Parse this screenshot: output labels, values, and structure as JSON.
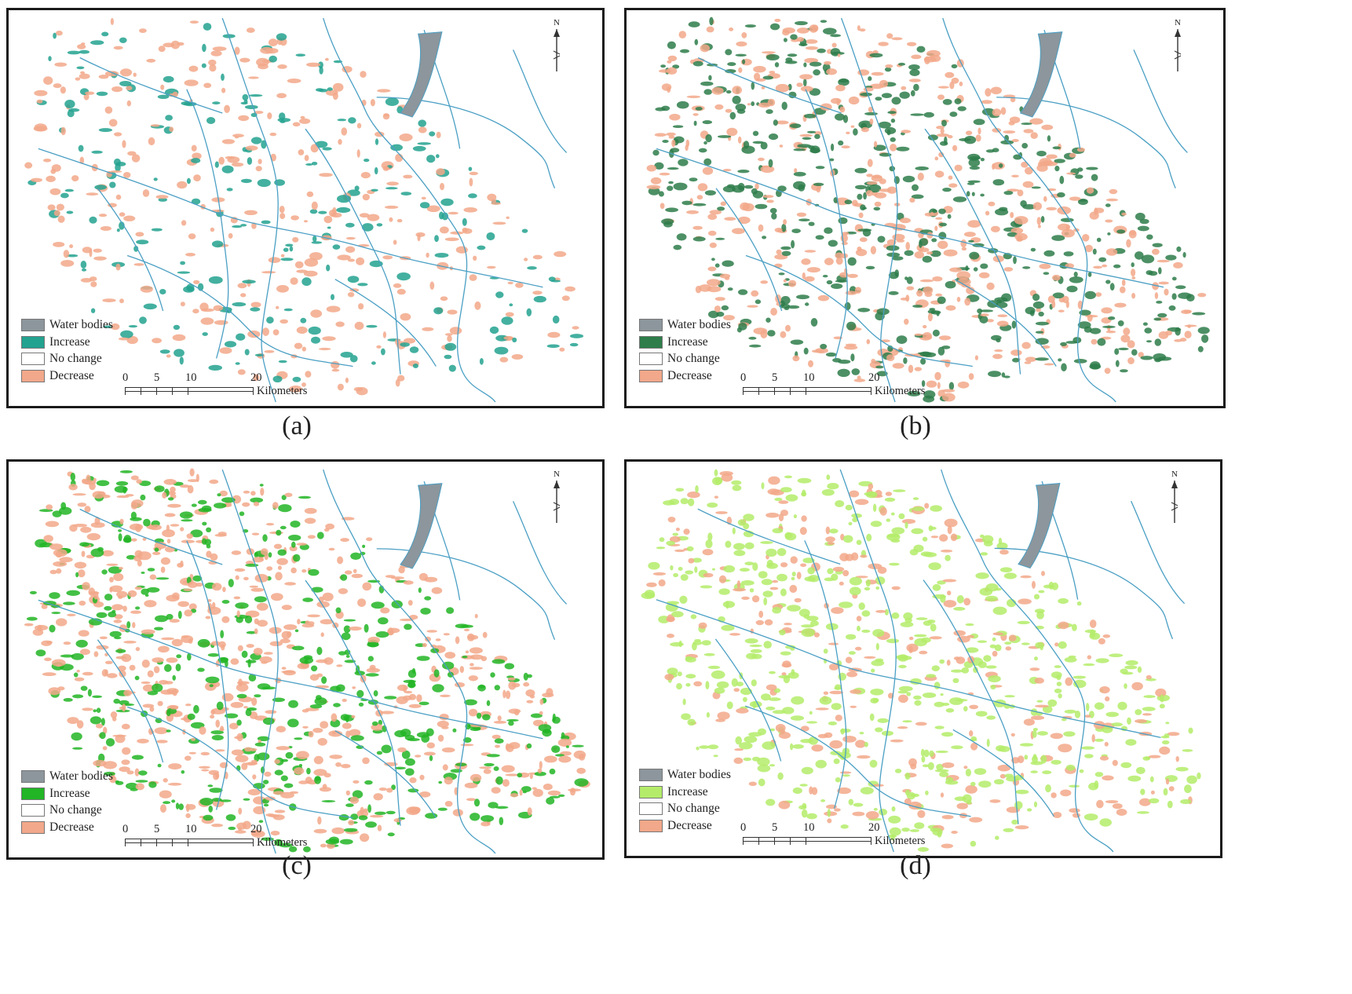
{
  "legend": {
    "water": "Water bodies",
    "increase": "Increase",
    "no_change": "No change",
    "decrease": "Decrease"
  },
  "scale": {
    "ticks": [
      "0",
      "5",
      "10",
      "20"
    ],
    "unit": "Kilometers"
  },
  "north_label": "N",
  "colors": {
    "water": "#8c969c",
    "river": "#4a9fc4",
    "decrease": "#f2a88a",
    "no_change": "#ffffff"
  },
  "panels": [
    {
      "caption": "(a)",
      "increase_color": "#23a28f"
    },
    {
      "caption": "(b)",
      "increase_color": "#2e7d4a"
    },
    {
      "caption": "(c)",
      "increase_color": "#22b525"
    },
    {
      "caption": "(d)",
      "increase_color": "#b4ec6a"
    }
  ]
}
